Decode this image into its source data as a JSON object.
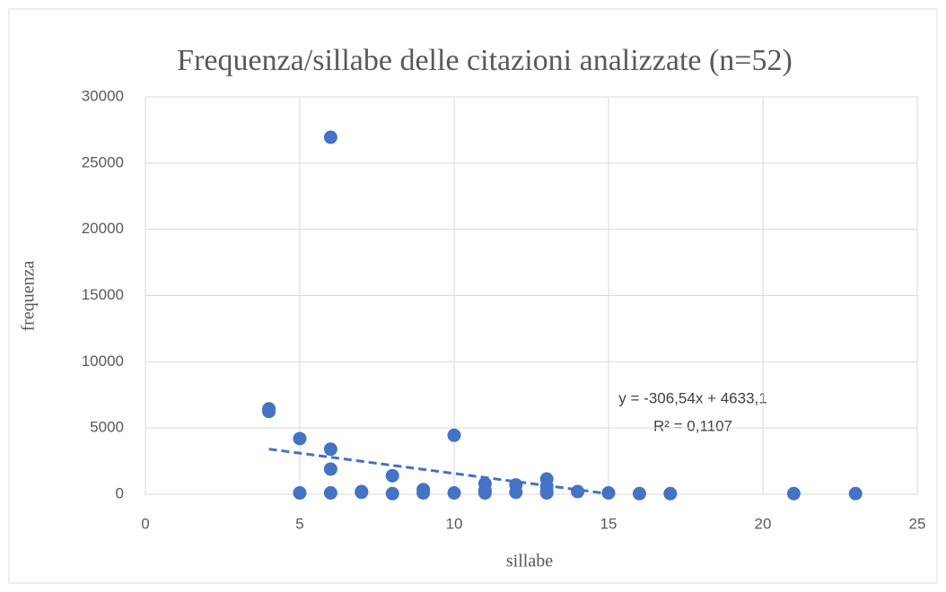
{
  "chart_data": {
    "type": "scatter",
    "title": "Frequenza/sillabe delle citazioni analizzate (n=52)",
    "xlabel": "sillabe",
    "ylabel": "frequenza",
    "color": "#4472c4",
    "grid": true,
    "xlim": [
      0,
      25
    ],
    "xticks": [
      0,
      5,
      10,
      15,
      20,
      25
    ],
    "ylim": [
      0,
      30000
    ],
    "yticks": [
      0,
      5000,
      10000,
      15000,
      20000,
      25000,
      30000
    ],
    "x": [
      4,
      4,
      6,
      5,
      6,
      6,
      10,
      5,
      6,
      7,
      7,
      8,
      8,
      9,
      9,
      10,
      11,
      11,
      11,
      12,
      12,
      13,
      13,
      13,
      13,
      14,
      15,
      16,
      17,
      21,
      23
    ],
    "values": [
      6450,
      6250,
      26950,
      4200,
      3400,
      1900,
      4450,
      100,
      100,
      200,
      150,
      1400,
      50,
      350,
      100,
      100,
      800,
      300,
      100,
      700,
      150,
      1150,
      600,
      200,
      100,
      200,
      100,
      50,
      50,
      50,
      50
    ],
    "trendline": {
      "label": "y = -306,54x + 4633,1",
      "r2_label": "R² = 0,1107",
      "slope": -306.54,
      "intercept": 4633.1,
      "xlim": [
        4,
        15.11
      ]
    }
  }
}
